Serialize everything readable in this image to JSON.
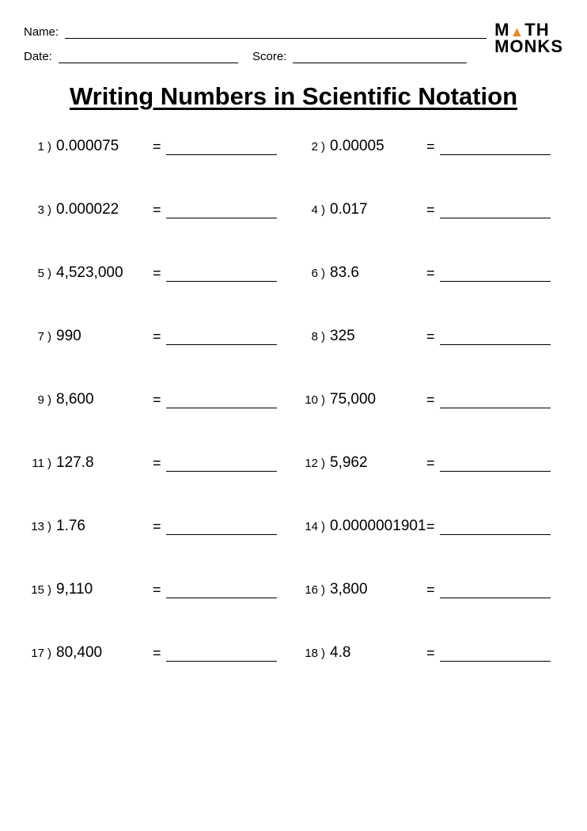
{
  "header": {
    "name_label": "Name:",
    "date_label": "Date:",
    "score_label": "Score:"
  },
  "logo": {
    "line1_a": "M",
    "line1_b": "TH",
    "line2": "MONKS"
  },
  "title": "Writing Numbers in Scientific Notation",
  "problems": [
    {
      "n": "1",
      "v": "0.000075"
    },
    {
      "n": "2",
      "v": "0.00005"
    },
    {
      "n": "3",
      "v": "0.000022"
    },
    {
      "n": "4",
      "v": "0.017"
    },
    {
      "n": "5",
      "v": "4,523,000"
    },
    {
      "n": "6",
      "v": "83.6"
    },
    {
      "n": "7",
      "v": "990"
    },
    {
      "n": "8",
      "v": "325"
    },
    {
      "n": "9",
      "v": "8,600"
    },
    {
      "n": "10",
      "v": "75,000"
    },
    {
      "n": "11",
      "v": "127.8"
    },
    {
      "n": "12",
      "v": "5,962"
    },
    {
      "n": "13",
      "v": "1.76"
    },
    {
      "n": "14",
      "v": "0.0000001901"
    },
    {
      "n": "15",
      "v": "9,110"
    },
    {
      "n": "16",
      "v": "3,800"
    },
    {
      "n": "17",
      "v": "80,400"
    },
    {
      "n": "18",
      "v": "4.8"
    }
  ]
}
